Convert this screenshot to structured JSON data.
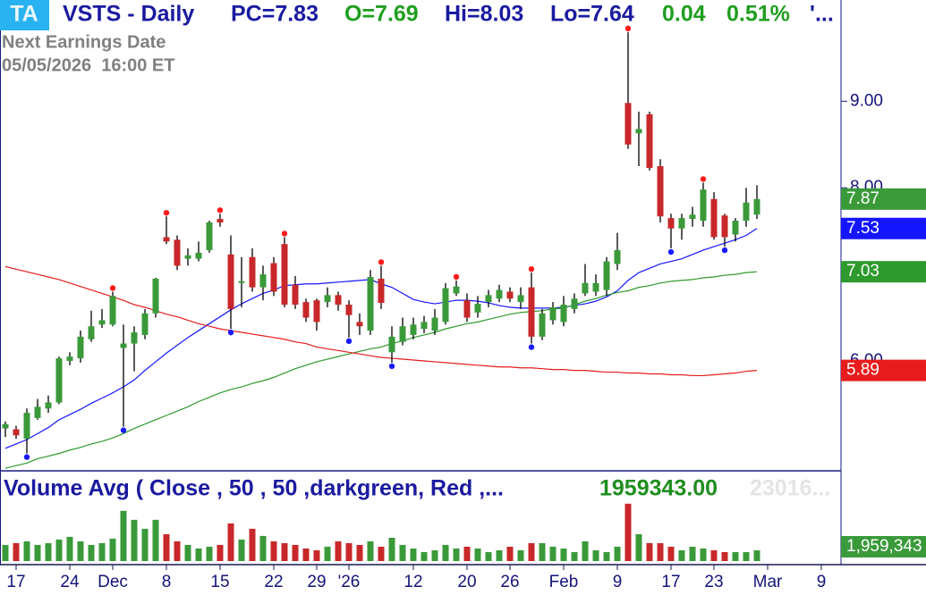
{
  "header": {
    "badge": "TA",
    "title": "VSTS - Daily",
    "pc": "PC=7.83",
    "open": "O=7.69",
    "high": "Hi=8.03",
    "low": "Lo=7.64",
    "change": "0.04",
    "change_pct": "0.51%",
    "more": "'...",
    "earnings_label": "Next Earnings Date",
    "earnings_date": "05/05/2026  16:00 ET"
  },
  "chart_data": {
    "type": "candlestick",
    "categories": [
      null,
      "17",
      null,
      null,
      null,
      null,
      "24",
      null,
      null,
      null,
      "Dec",
      null,
      null,
      null,
      null,
      "8",
      null,
      null,
      null,
      null,
      "15",
      null,
      null,
      null,
      null,
      "22",
      null,
      null,
      null,
      "29",
      null,
      null,
      "'26",
      null,
      null,
      null,
      null,
      null,
      "12",
      null,
      null,
      null,
      null,
      "20",
      null,
      null,
      null,
      "26",
      null,
      null,
      null,
      null,
      "Feb",
      null,
      null,
      null,
      null,
      "9",
      null,
      null,
      null,
      null,
      "17",
      null,
      null,
      null,
      "23",
      null,
      null,
      null,
      null,
      "Mar",
      null,
      null,
      null,
      null,
      "9"
    ],
    "open": [
      5.22,
      5.21,
      5.1,
      5.34,
      5.45,
      5.52,
      6.0,
      6.03,
      6.25,
      6.42,
      6.42,
      6.15,
      6.2,
      6.3,
      6.55,
      7.43,
      7.4,
      7.18,
      7.18,
      7.28,
      7.64,
      7.23,
      6.9,
      7.2,
      6.85,
      7.13,
      7.35,
      6.88,
      6.68,
      6.7,
      6.68,
      6.76,
      6.65,
      6.45,
      6.35,
      6.95,
      6.1,
      6.22,
      6.3,
      6.37,
      6.35,
      6.45,
      6.78,
      6.7,
      6.56,
      6.68,
      6.72,
      6.8,
      6.68,
      6.85,
      6.28,
      6.47,
      6.45,
      6.6,
      6.78,
      6.8,
      6.82,
      7.12,
      8.98,
      8.63,
      8.85,
      8.25,
      7.65,
      7.53,
      7.64,
      7.62,
      7.87,
      7.68,
      7.46,
      7.62,
      7.69,
      null,
      null,
      null,
      null,
      null,
      null
    ],
    "high": [
      5.3,
      5.25,
      5.45,
      5.56,
      5.6,
      6.05,
      6.1,
      6.35,
      6.58,
      6.6,
      6.8,
      6.42,
      6.4,
      6.6,
      6.96,
      7.67,
      7.45,
      7.3,
      7.38,
      7.62,
      7.7,
      7.45,
      7.2,
      7.3,
      7.1,
      7.2,
      7.43,
      6.98,
      6.72,
      6.72,
      6.85,
      6.8,
      6.7,
      6.55,
      7.05,
      7.1,
      6.4,
      6.5,
      6.5,
      6.52,
      6.6,
      6.9,
      6.93,
      6.78,
      6.75,
      6.82,
      6.88,
      6.85,
      6.85,
      7.02,
      6.6,
      6.68,
      6.75,
      6.78,
      7.12,
      7.0,
      7.2,
      7.48,
      9.8,
      8.88,
      8.88,
      8.33,
      7.7,
      7.7,
      7.78,
      8.06,
      7.95,
      7.7,
      7.65,
      8.0,
      8.03,
      null,
      null,
      null,
      null,
      null,
      null
    ],
    "low": [
      5.12,
      5.1,
      4.93,
      5.32,
      5.4,
      5.5,
      5.95,
      5.98,
      6.22,
      6.38,
      6.4,
      5.24,
      5.88,
      6.25,
      6.5,
      7.35,
      7.05,
      7.1,
      7.15,
      7.25,
      7.55,
      6.37,
      6.62,
      6.8,
      6.7,
      6.75,
      6.62,
      6.6,
      6.45,
      6.35,
      6.62,
      6.58,
      6.27,
      6.3,
      6.3,
      6.6,
      5.98,
      6.18,
      6.25,
      6.32,
      6.3,
      6.42,
      6.75,
      6.45,
      6.5,
      6.62,
      6.68,
      6.68,
      6.6,
      6.2,
      6.24,
      6.42,
      6.4,
      6.55,
      6.75,
      6.75,
      6.75,
      7.05,
      8.45,
      8.25,
      8.2,
      7.6,
      7.3,
      7.4,
      7.55,
      7.55,
      7.4,
      7.32,
      7.38,
      7.55,
      7.64,
      null,
      null,
      null,
      null,
      null,
      null
    ],
    "close": [
      5.27,
      5.14,
      5.4,
      5.47,
      5.52,
      6.03,
      6.05,
      6.28,
      6.4,
      6.47,
      6.75,
      6.2,
      6.33,
      6.55,
      6.95,
      7.38,
      7.1,
      7.22,
      7.25,
      7.6,
      7.6,
      6.6,
      6.92,
      6.85,
      7.0,
      6.8,
      6.65,
      6.65,
      6.5,
      6.45,
      6.76,
      6.65,
      6.53,
      6.4,
      6.97,
      6.67,
      6.28,
      6.4,
      6.42,
      6.45,
      6.5,
      6.84,
      6.86,
      6.5,
      6.66,
      6.76,
      6.82,
      6.72,
      6.76,
      6.28,
      6.55,
      6.62,
      6.65,
      6.72,
      6.9,
      6.9,
      7.15,
      7.28,
      8.5,
      8.68,
      8.23,
      7.67,
      7.53,
      7.65,
      7.69,
      7.98,
      7.43,
      7.43,
      7.62,
      7.83,
      7.87,
      null,
      null,
      null,
      null,
      null,
      null
    ],
    "up_color": "#3a9a3a",
    "down_color": "#c8282a",
    "wick_color": "#000000",
    "ylim": [
      4.73,
      10.17
    ],
    "yticks": [
      {
        "value": 6,
        "label": "6.00"
      },
      {
        "value": 8,
        "label": "8.00"
      },
      {
        "value": 9,
        "label": "9.00"
      }
    ],
    "moving_averages": [
      {
        "color": "#1515ff",
        "values": [
          4.99,
          5.04,
          5.09,
          5.16,
          5.23,
          5.32,
          5.38,
          5.44,
          5.51,
          5.57,
          5.63,
          5.7,
          5.78,
          5.89,
          5.99,
          6.09,
          6.18,
          6.27,
          6.35,
          6.43,
          6.51,
          6.59,
          6.66,
          6.72,
          6.78,
          6.82,
          6.87,
          6.88,
          6.89,
          6.89,
          6.9,
          6.91,
          6.92,
          6.93,
          6.94,
          6.89,
          6.85,
          6.78,
          6.71,
          6.68,
          6.66,
          6.68,
          6.7,
          6.7,
          6.69,
          6.67,
          6.64,
          6.62,
          6.61,
          6.61,
          6.61,
          6.61,
          6.62,
          6.64,
          6.66,
          6.69,
          6.74,
          6.81,
          6.93,
          7.02,
          7.07,
          7.12,
          7.15,
          7.18,
          7.23,
          7.28,
          7.32,
          7.36,
          7.4,
          7.45,
          7.53,
          null,
          null,
          null,
          null,
          null,
          null
        ]
      },
      {
        "color": "#2e9a2e",
        "values": [
          4.76,
          4.79,
          4.82,
          4.87,
          4.9,
          4.93,
          4.97,
          5.0,
          5.04,
          5.07,
          5.11,
          5.16,
          5.22,
          5.27,
          5.32,
          5.37,
          5.42,
          5.47,
          5.53,
          5.58,
          5.63,
          5.67,
          5.7,
          5.74,
          5.77,
          5.81,
          5.86,
          5.91,
          5.95,
          5.99,
          6.02,
          6.05,
          6.08,
          6.11,
          6.14,
          6.16,
          6.2,
          6.23,
          6.27,
          6.3,
          6.33,
          6.37,
          6.4,
          6.43,
          6.45,
          6.48,
          6.51,
          6.54,
          6.56,
          6.57,
          6.58,
          6.6,
          6.61,
          6.65,
          6.69,
          6.72,
          6.76,
          6.79,
          6.81,
          6.85,
          6.87,
          6.9,
          6.92,
          6.93,
          6.94,
          6.96,
          6.97,
          6.99,
          7.0,
          7.02,
          7.03,
          null,
          null,
          null,
          null,
          null,
          null
        ]
      },
      {
        "color": "#e81c1c",
        "values": [
          7.09,
          7.06,
          7.03,
          7.0,
          6.97,
          6.94,
          6.9,
          6.86,
          6.82,
          6.78,
          6.74,
          6.7,
          6.65,
          6.62,
          6.58,
          6.54,
          6.51,
          6.47,
          6.43,
          6.4,
          6.37,
          6.35,
          6.33,
          6.31,
          6.29,
          6.27,
          6.25,
          6.22,
          6.2,
          6.16,
          6.14,
          6.12,
          6.1,
          6.08,
          6.06,
          6.04,
          6.03,
          6.02,
          6.01,
          6.0,
          5.99,
          5.98,
          5.97,
          5.96,
          5.95,
          5.94,
          5.93,
          5.93,
          5.92,
          5.92,
          5.91,
          5.9,
          5.9,
          5.89,
          5.89,
          5.88,
          5.87,
          5.87,
          5.86,
          5.86,
          5.85,
          5.85,
          5.84,
          5.84,
          5.83,
          5.83,
          5.84,
          5.85,
          5.86,
          5.88,
          5.89,
          null,
          null,
          null,
          null,
          null,
          null
        ]
      }
    ],
    "last_value_badges": true,
    "swing_highs": [
      10,
      15,
      20,
      26,
      35,
      42,
      49,
      58,
      65
    ],
    "swing_lows": [
      2,
      11,
      21,
      32,
      36,
      49,
      62,
      67
    ],
    "swing_high_color": "#ff1a1a",
    "swing_low_color": "#1a1aff",
    "volume": {
      "title": "Volume Avg ( Close , 50 , 50 ,darkgreen, Red ,...",
      "avg_text": "1959343.00",
      "faded_text": "23016...",
      "badge": "1,959,343",
      "ylim": [
        0,
        11600000
      ],
      "values": [
        2205000,
        2450000,
        2695000,
        2205000,
        2450000,
        2940000,
        3307500,
        2695000,
        2205000,
        2450000,
        3062500,
        6860000,
        5635000,
        4410000,
        5635000,
        3675000,
        2695000,
        2205000,
        1715000,
        1960000,
        2205000,
        5145000,
        2940000,
        4410000,
        3430000,
        2695000,
        2450000,
        2205000,
        1715000,
        1470000,
        1960000,
        2695000,
        2450000,
        2205000,
        2695000,
        1960000,
        3185000,
        2205000,
        1715000,
        1225000,
        1470000,
        2205000,
        1715000,
        1960000,
        1715000,
        1225000,
        1470000,
        1960000,
        1470000,
        2450000,
        2450000,
        1960000,
        1715000,
        1225000,
        2695000,
        1470000,
        1225000,
        1960000,
        7840000,
        3675000,
        2450000,
        2450000,
        1960000,
        1470000,
        1960000,
        1715000,
        1470000,
        1225000,
        1225000,
        1225000,
        1470000,
        null,
        null,
        null,
        null,
        null,
        null
      ]
    }
  }
}
